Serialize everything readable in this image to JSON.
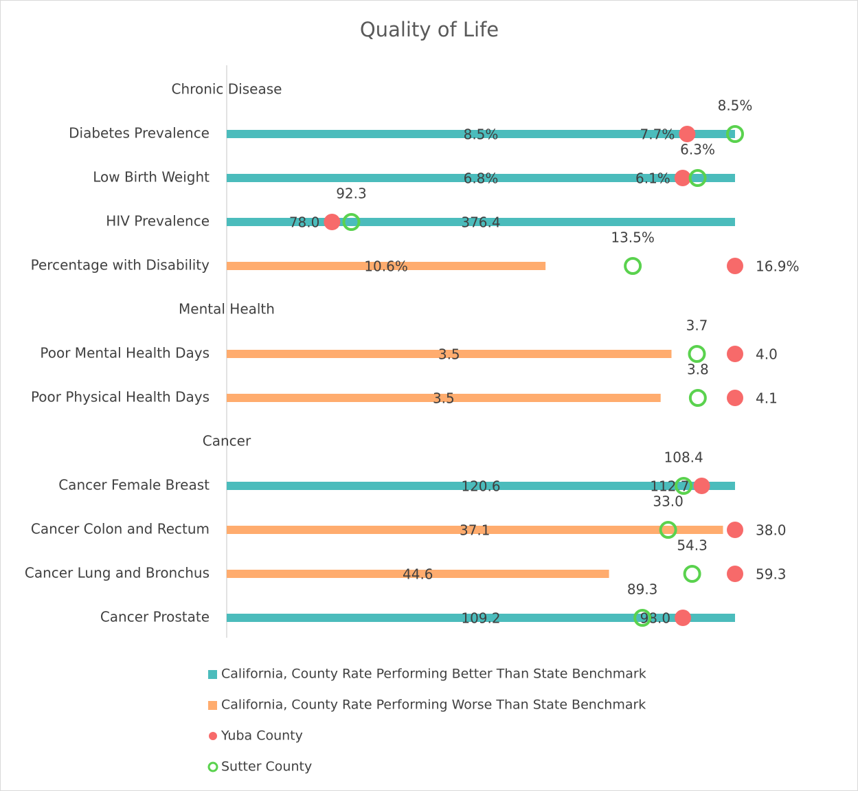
{
  "chart_data": {
    "type": "dot-bar",
    "title": "Quality of Life",
    "groups": [
      {
        "name": "Chronic Disease",
        "categories": [
          "Diabetes Prevalence",
          "Low Birth Weight",
          "HIV Prevalence",
          "Percentage with Disability"
        ]
      },
      {
        "name": "Mental Health",
        "categories": [
          "Poor Mental Health Days",
          "Poor Physical Health Days"
        ]
      },
      {
        "name": "Cancer",
        "categories": [
          "Cancer Female Breast",
          "Cancer Colon and Rectum",
          "Cancer Lung and Bronchus",
          "Cancer Prostate"
        ]
      }
    ],
    "series": [
      {
        "name": "California, County Rate Performing Better Than State Benchmark",
        "color": "#4bbcbc",
        "mark": "bar",
        "values": [
          8.5,
          6.8,
          376.4,
          null,
          null,
          null,
          120.6,
          null,
          null,
          109.2
        ],
        "value_labels": [
          "8.5%",
          "6.8%",
          "376.4",
          null,
          null,
          null,
          "120.6",
          null,
          null,
          "109.2"
        ]
      },
      {
        "name": "California, County Rate Performing Worse Than State Benchmark",
        "color": "#ffac6e",
        "mark": "bar",
        "values": [
          null,
          null,
          null,
          10.6,
          3.5,
          3.5,
          null,
          37.1,
          44.6,
          null
        ],
        "value_labels": [
          null,
          null,
          null,
          "10.6%",
          "3.5",
          "3.5",
          null,
          "37.1",
          "44.6",
          null
        ]
      },
      {
        "name": "Yuba County",
        "color": "#f76a6a",
        "mark": "dot",
        "values": [
          7.7,
          6.1,
          78.0,
          16.9,
          4.0,
          4.1,
          112.7,
          38.0,
          59.3,
          98.0
        ],
        "value_labels": [
          "7.7%",
          "6.1%",
          "78.0",
          "16.9%",
          "4.0",
          "4.1",
          "112.7",
          "38.0",
          "59.3",
          "98.0"
        ]
      },
      {
        "name": "Sutter County",
        "color": "#5ad24e",
        "mark": "ring",
        "values": [
          8.5,
          6.3,
          92.3,
          13.5,
          3.7,
          3.8,
          108.4,
          33.0,
          54.3,
          89.3
        ],
        "value_labels": [
          "8.5%",
          "6.3%",
          "92.3",
          "13.5%",
          "3.7",
          "3.8",
          "108.4",
          "33.0",
          "54.3",
          "89.3"
        ]
      }
    ]
  }
}
